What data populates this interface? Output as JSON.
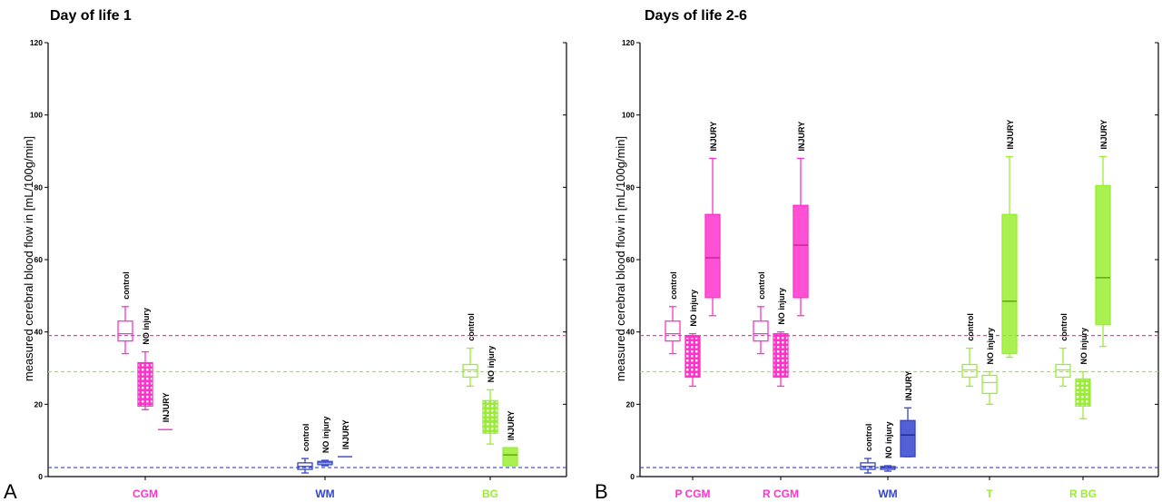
{
  "figure": {
    "panels": [
      "A",
      "B"
    ]
  },
  "chart_data": [
    {
      "type": "boxplot",
      "panel": "A",
      "title": "Day of life 1",
      "ylabel": "measured cerebral blood flow in [mL/100g/min]",
      "ylim": [
        0,
        120
      ],
      "yticks": [
        0,
        20,
        40,
        60,
        80,
        100,
        120
      ],
      "grid": false,
      "reference_lines": [
        {
          "value": 39,
          "color": "#ff33cc"
        },
        {
          "value": 29,
          "color": "#99ee33"
        },
        {
          "value": 2.5,
          "color": "#3344cc"
        }
      ],
      "groups": [
        {
          "label": "CGM",
          "color": "#ff33cc",
          "boxes": [
            {
              "label": "control",
              "min": 34,
              "q1": 37.5,
              "median": 39.5,
              "q3": 43,
              "max": 47,
              "style": "outline"
            },
            {
              "label": "NO injury",
              "min": 18.5,
              "q1": 19.5,
              "median": 24,
              "q3": 31.5,
              "max": 34.5,
              "style": "dotted"
            },
            {
              "label": "INJURY",
              "min": 13,
              "q1": 13,
              "median": 13,
              "q3": 13,
              "max": 13,
              "style": "line"
            }
          ]
        },
        {
          "label": "WM",
          "color": "#3344cc",
          "boxes": [
            {
              "label": "control",
              "min": 1,
              "q1": 2,
              "median": 2.8,
              "q3": 3.8,
              "max": 5,
              "style": "outline"
            },
            {
              "label": "NO injury",
              "min": 3,
              "q1": 3.3,
              "median": 3.8,
              "q3": 4.2,
              "max": 4.5,
              "style": "outline"
            },
            {
              "label": "INJURY",
              "min": 5.5,
              "q1": 5.5,
              "median": 5.5,
              "q3": 5.5,
              "max": 5.5,
              "style": "line"
            }
          ]
        },
        {
          "label": "BG",
          "color": "#99ee33",
          "boxes": [
            {
              "label": "control",
              "min": 25,
              "q1": 27.5,
              "median": 29.5,
              "q3": 31,
              "max": 35.5,
              "style": "outline"
            },
            {
              "label": "NO injury",
              "min": 9,
              "q1": 12,
              "median": 15.5,
              "q3": 21,
              "max": 24,
              "style": "dotted"
            },
            {
              "label": "INJURY",
              "min": 3,
              "q1": 3,
              "median": 6,
              "q3": 8,
              "max": 8,
              "style": "filled"
            }
          ]
        }
      ]
    },
    {
      "type": "boxplot",
      "panel": "B",
      "title": "Days of life 2-6",
      "ylabel": "measured cerebral blood flow in [mL/100g/min]",
      "ylim": [
        0,
        120
      ],
      "yticks": [
        0,
        20,
        40,
        60,
        80,
        100,
        120
      ],
      "grid": false,
      "reference_lines": [
        {
          "value": 39,
          "color": "#ff33cc"
        },
        {
          "value": 29,
          "color": "#99ee33"
        },
        {
          "value": 2.5,
          "color": "#3344cc"
        }
      ],
      "groups": [
        {
          "label": "P CGM",
          "color": "#ff33cc",
          "boxes": [
            {
              "label": "control",
              "min": 34,
              "q1": 37.5,
              "median": 39.5,
              "q3": 43,
              "max": 47,
              "style": "outline"
            },
            {
              "label": "NO injury",
              "min": 25,
              "q1": 27.5,
              "median": 38.5,
              "q3": 39,
              "max": 39.5,
              "style": "dotted"
            },
            {
              "label": "INJURY",
              "min": 44.5,
              "q1": 49.5,
              "median": 60.5,
              "q3": 72.5,
              "max": 88,
              "style": "filled"
            }
          ]
        },
        {
          "label": "R CGM",
          "color": "#ff33cc",
          "boxes": [
            {
              "label": "control",
              "min": 34,
              "q1": 37.5,
              "median": 39.5,
              "q3": 43,
              "max": 47,
              "style": "outline"
            },
            {
              "label": "NO injury",
              "min": 25,
              "q1": 27.5,
              "median": 39,
              "q3": 39.5,
              "max": 40,
              "style": "dotted"
            },
            {
              "label": "INJURY",
              "min": 44.5,
              "q1": 49.5,
              "median": 64,
              "q3": 75,
              "max": 88,
              "style": "filled"
            }
          ]
        },
        {
          "label": "WM",
          "color": "#3344cc",
          "boxes": [
            {
              "label": "control",
              "min": 1,
              "q1": 2,
              "median": 2.8,
              "q3": 3.8,
              "max": 5,
              "style": "outline"
            },
            {
              "label": "NO injury",
              "min": 1.5,
              "q1": 2,
              "median": 2.4,
              "q3": 2.8,
              "max": 3,
              "style": "outline"
            },
            {
              "label": "INJURY",
              "min": 5.5,
              "q1": 5.5,
              "median": 11.5,
              "q3": 15.5,
              "max": 19,
              "style": "filled"
            }
          ]
        },
        {
          "label": "T",
          "color": "#99ee33",
          "boxes": [
            {
              "label": "control",
              "min": 25,
              "q1": 27.5,
              "median": 29.5,
              "q3": 31,
              "max": 35.5,
              "style": "outline"
            },
            {
              "label": "NO injury",
              "min": 20,
              "q1": 23,
              "median": 26,
              "q3": 28,
              "max": 29,
              "style": "outline"
            },
            {
              "label": "INJURY",
              "min": 33,
              "q1": 34,
              "median": 48.5,
              "q3": 72.5,
              "max": 88.5,
              "style": "filled"
            }
          ]
        },
        {
          "label": "R BG",
          "color": "#99ee33",
          "boxes": [
            {
              "label": "control",
              "min": 25,
              "q1": 27.5,
              "median": 29.5,
              "q3": 31,
              "max": 35.5,
              "style": "outline"
            },
            {
              "label": "NO injury",
              "min": 16,
              "q1": 19.5,
              "median": 23,
              "q3": 27,
              "max": 29,
              "style": "dotted"
            },
            {
              "label": "INJURY",
              "min": 36,
              "q1": 42,
              "median": 55,
              "q3": 80.5,
              "max": 88.5,
              "style": "filled"
            }
          ]
        }
      ]
    }
  ]
}
